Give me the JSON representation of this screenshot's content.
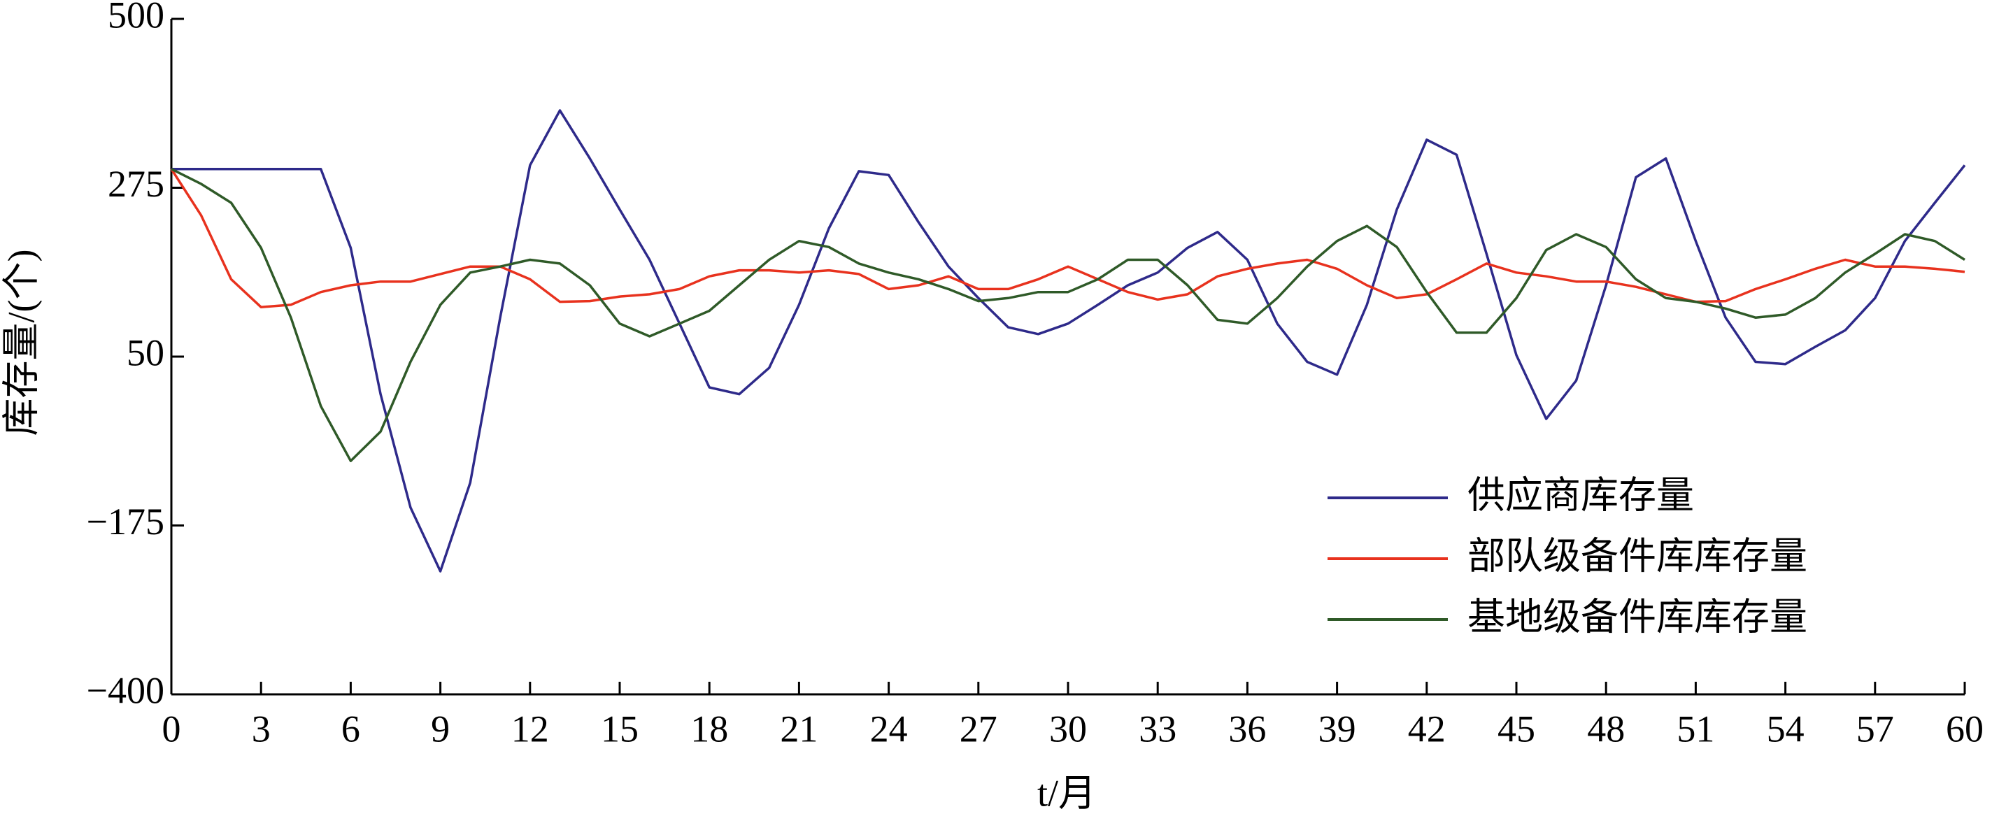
{
  "chart_data": {
    "type": "line",
    "xlabel": "t/月",
    "ylabel": "库存量/(个)",
    "x": [
      0,
      1,
      2,
      3,
      4,
      5,
      6,
      7,
      8,
      9,
      10,
      11,
      12,
      13,
      14,
      15,
      16,
      17,
      18,
      19,
      20,
      21,
      22,
      23,
      24,
      25,
      26,
      27,
      28,
      29,
      30,
      31,
      32,
      33,
      34,
      35,
      36,
      37,
      38,
      39,
      40,
      41,
      42,
      43,
      44,
      45,
      46,
      47,
      48,
      49,
      50,
      51,
      52,
      53,
      54,
      55,
      56,
      57,
      58,
      59,
      60
    ],
    "xlim": [
      0,
      60
    ],
    "xticks": [
      0,
      3,
      6,
      9,
      12,
      15,
      18,
      21,
      24,
      27,
      30,
      33,
      36,
      39,
      42,
      45,
      48,
      51,
      54,
      57,
      60
    ],
    "ylim": [
      -400,
      500
    ],
    "yticks": [
      {
        "value": -400,
        "label": "−400"
      },
      {
        "value": -175,
        "label": "−175"
      },
      50,
      275,
      500
    ],
    "grid": false,
    "legend": "lower right",
    "series": [
      {
        "name": "供应商库存量",
        "color": "#2e2a8a",
        "values": [
          300,
          300,
          300,
          300,
          300,
          300,
          195,
          0,
          -151,
          -236,
          -118,
          102,
          305,
          378,
          314,
          246,
          179,
          94,
          9,
          0,
          35,
          119,
          221,
          297,
          292,
          229,
          170,
          128,
          89,
          80,
          94,
          119,
          145,
          162,
          195,
          216,
          179,
          94,
          43,
          26,
          119,
          246,
          339,
          319,
          187,
          52,
          -33,
          18,
          145,
          289,
          314,
          204,
          102,
          43,
          40,
          63,
          85,
          128,
          204,
          255,
          305
        ]
      },
      {
        "name": "部队级备件库库存量",
        "color": "#e8321e",
        "values": [
          300,
          238,
          153,
          116,
          119,
          136,
          145,
          150,
          150,
          160,
          170,
          170,
          153,
          123,
          124,
          130,
          133,
          140,
          157,
          165,
          165,
          162,
          165,
          160,
          140,
          145,
          157,
          140,
          140,
          153,
          170,
          153,
          136,
          126,
          133,
          157,
          167,
          174,
          179,
          167,
          145,
          128,
          133,
          153,
          174,
          162,
          157,
          150,
          150,
          143,
          133,
          123,
          124,
          140,
          153,
          167,
          179,
          170,
          170,
          167,
          163
        ]
      },
      {
        "name": "基地级备件库库存量",
        "color": "#2f5a28",
        "values": [
          300,
          280,
          255,
          195,
          102,
          -16,
          -89,
          -50,
          43,
          119,
          162,
          170,
          179,
          174,
          145,
          94,
          77,
          94,
          111,
          145,
          179,
          204,
          196,
          174,
          162,
          153,
          140,
          124,
          128,
          136,
          136,
          153,
          179,
          179,
          145,
          99,
          94,
          128,
          170,
          204,
          224,
          196,
          136,
          82,
          82,
          128,
          192,
          213,
          196,
          153,
          128,
          123,
          114,
          102,
          106,
          128,
          162,
          187,
          213,
          204,
          179
        ]
      }
    ]
  }
}
